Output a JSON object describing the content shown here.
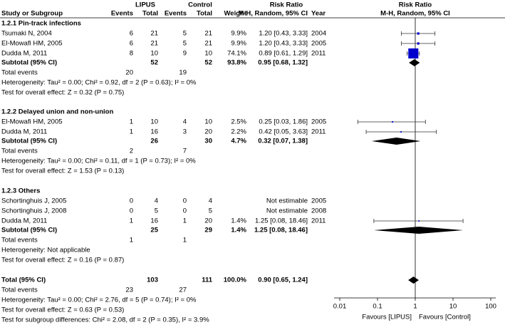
{
  "header": {
    "study": "Study or Subgroup",
    "lipus": "LIPUS",
    "control": "Control",
    "events1": "Events",
    "total1": "Total",
    "events2": "Events",
    "total2": "Total",
    "weight": "Weight",
    "rr_title": "Risk Ratio",
    "rr_method": "M-H, Random, 95% CI",
    "year": "Year",
    "plot_title": "Risk Ratio",
    "plot_method": "M-H, Random, 95% CI"
  },
  "groups": [
    {
      "title": "1.2.1 Pin-track infections",
      "studies": [
        {
          "name": "Tsumaki N, 2004",
          "lipus_events": 6,
          "lipus_total": 21,
          "control_events": 5,
          "control_total": 21,
          "weight": {
            "value": 9.9,
            "label": "9.9%"
          },
          "rr": {
            "est": 1.2,
            "lo": 0.43,
            "hi": 3.33,
            "label": "1.20 [0.43, 3.33]"
          },
          "year": "2004"
        },
        {
          "name": "El-Mowafi HM, 2005",
          "lipus_events": 6,
          "lipus_total": 21,
          "control_events": 5,
          "control_total": 21,
          "weight": {
            "value": 9.9,
            "label": "9.9%"
          },
          "rr": {
            "est": 1.2,
            "lo": 0.43,
            "hi": 3.33,
            "label": "1.20 [0.43, 3.33]"
          },
          "year": "2005"
        },
        {
          "name": "Dudda M, 2011",
          "lipus_events": 8,
          "lipus_total": 10,
          "control_events": 9,
          "control_total": 10,
          "weight": {
            "value": 74.1,
            "label": "74.1%"
          },
          "rr": {
            "est": 0.89,
            "lo": 0.61,
            "hi": 1.29,
            "label": "0.89 [0.61, 1.29]"
          },
          "year": "2011"
        }
      ],
      "subtotal": {
        "name": "Subtotal (95% CI)",
        "lipus_total": 52,
        "control_total": 52,
        "weight": {
          "value": 93.8,
          "label": "93.8%"
        },
        "rr": {
          "est": 0.95,
          "lo": 0.68,
          "hi": 1.32,
          "label": "0.95 [0.68, 1.32]"
        }
      },
      "total_events": {
        "name": "Total events",
        "lipus": 20,
        "control": 19
      },
      "heterogeneity": "Heterogeneity: Tau² = 0.00; Chi² = 0.92, df = 2 (P = 0.63); I² = 0%",
      "effect": "Test for overall effect: Z = 0.32 (P = 0.75)"
    },
    {
      "title": "1.2.2 Delayed union and non-union",
      "studies": [
        {
          "name": "El-Mowafi HM, 2005",
          "lipus_events": 1,
          "lipus_total": 10,
          "control_events": 4,
          "control_total": 10,
          "weight": {
            "value": 2.5,
            "label": "2.5%"
          },
          "rr": {
            "est": 0.25,
            "lo": 0.03,
            "hi": 1.86,
            "label": "0.25 [0.03, 1.86]"
          },
          "year": "2005"
        },
        {
          "name": "Dudda M, 2011",
          "lipus_events": 1,
          "lipus_total": 16,
          "control_events": 3,
          "control_total": 20,
          "weight": {
            "value": 2.2,
            "label": "2.2%"
          },
          "rr": {
            "est": 0.42,
            "lo": 0.05,
            "hi": 3.63,
            "label": "0.42 [0.05, 3.63]"
          },
          "year": "2011"
        }
      ],
      "subtotal": {
        "name": "Subtotal (95% CI)",
        "lipus_total": 26,
        "control_total": 30,
        "weight": {
          "value": 4.7,
          "label": "4.7%"
        },
        "rr": {
          "est": 0.32,
          "lo": 0.07,
          "hi": 1.38,
          "label": "0.32 [0.07, 1.38]"
        }
      },
      "total_events": {
        "name": "Total events",
        "lipus": 2,
        "control": 7
      },
      "heterogeneity": "Heterogeneity: Tau² = 0.00; Chi² = 0.11, df = 1 (P = 0.73); I² = 0%",
      "effect": "Test for overall effect: Z = 1.53 (P = 0.13)"
    },
    {
      "title": "1.2.3 Others",
      "studies": [
        {
          "name": "Schortinghuis J, 2005",
          "lipus_events": 0,
          "lipus_total": 4,
          "control_events": 0,
          "control_total": 4,
          "rr": {
            "label": "Not estimable"
          },
          "year": "2005"
        },
        {
          "name": "Schortinghuis J, 2008",
          "lipus_events": 0,
          "lipus_total": 5,
          "control_events": 0,
          "control_total": 5,
          "rr": {
            "label": "Not estimable"
          },
          "year": "2008"
        },
        {
          "name": "Dudda M, 2011",
          "lipus_events": 1,
          "lipus_total": 16,
          "control_events": 1,
          "control_total": 20,
          "weight": {
            "value": 1.4,
            "label": "1.4%"
          },
          "rr": {
            "est": 1.25,
            "lo": 0.08,
            "hi": 18.46,
            "label": "1.25 [0.08, 18.46]"
          },
          "year": "2011"
        }
      ],
      "subtotal": {
        "name": "Subtotal (95% CI)",
        "lipus_total": 25,
        "control_total": 29,
        "weight": {
          "value": 1.4,
          "label": "1.4%"
        },
        "rr": {
          "est": 1.25,
          "lo": 0.08,
          "hi": 18.46,
          "label": "1.25 [0.08, 18.46]"
        }
      },
      "total_events": {
        "name": "Total events",
        "lipus": 1,
        "control": 1
      },
      "heterogeneity": "Heterogeneity: Not applicable",
      "effect": "Test for overall effect: Z = 0.16 (P = 0.87)"
    }
  ],
  "overall": {
    "total": {
      "name": "Total (95% CI)",
      "lipus_total": 103,
      "control_total": 111,
      "weight": {
        "value": 100.0,
        "label": "100.0%"
      },
      "rr": {
        "est": 0.9,
        "lo": 0.65,
        "hi": 1.24,
        "label": "0.90 [0.65, 1.24]"
      }
    },
    "total_events": {
      "name": "Total events",
      "lipus": 23,
      "control": 27
    },
    "heterogeneity": "Heterogeneity: Tau² = 0.00; Chi² = 2.76, df = 5 (P = 0.74); I² = 0%",
    "effect": "Test for overall effect: Z = 0.63 (P = 0.53)",
    "subgroup": "Test for subgroup differences: Chi² = 2.08, df = 2 (P = 0.35), I² = 3.9%"
  },
  "plot": {
    "log": true,
    "xlim": [
      0.01,
      100
    ],
    "xticks": [
      {
        "value": 0.01,
        "label": "0.01"
      },
      {
        "value": 0.1,
        "label": "0.1"
      },
      1,
      10,
      100
    ],
    "favours_left": "Favours [LIPUS]",
    "favours_right": "Favours [Control]",
    "square_color": "#0000cc",
    "diamond_color": "#000000"
  }
}
